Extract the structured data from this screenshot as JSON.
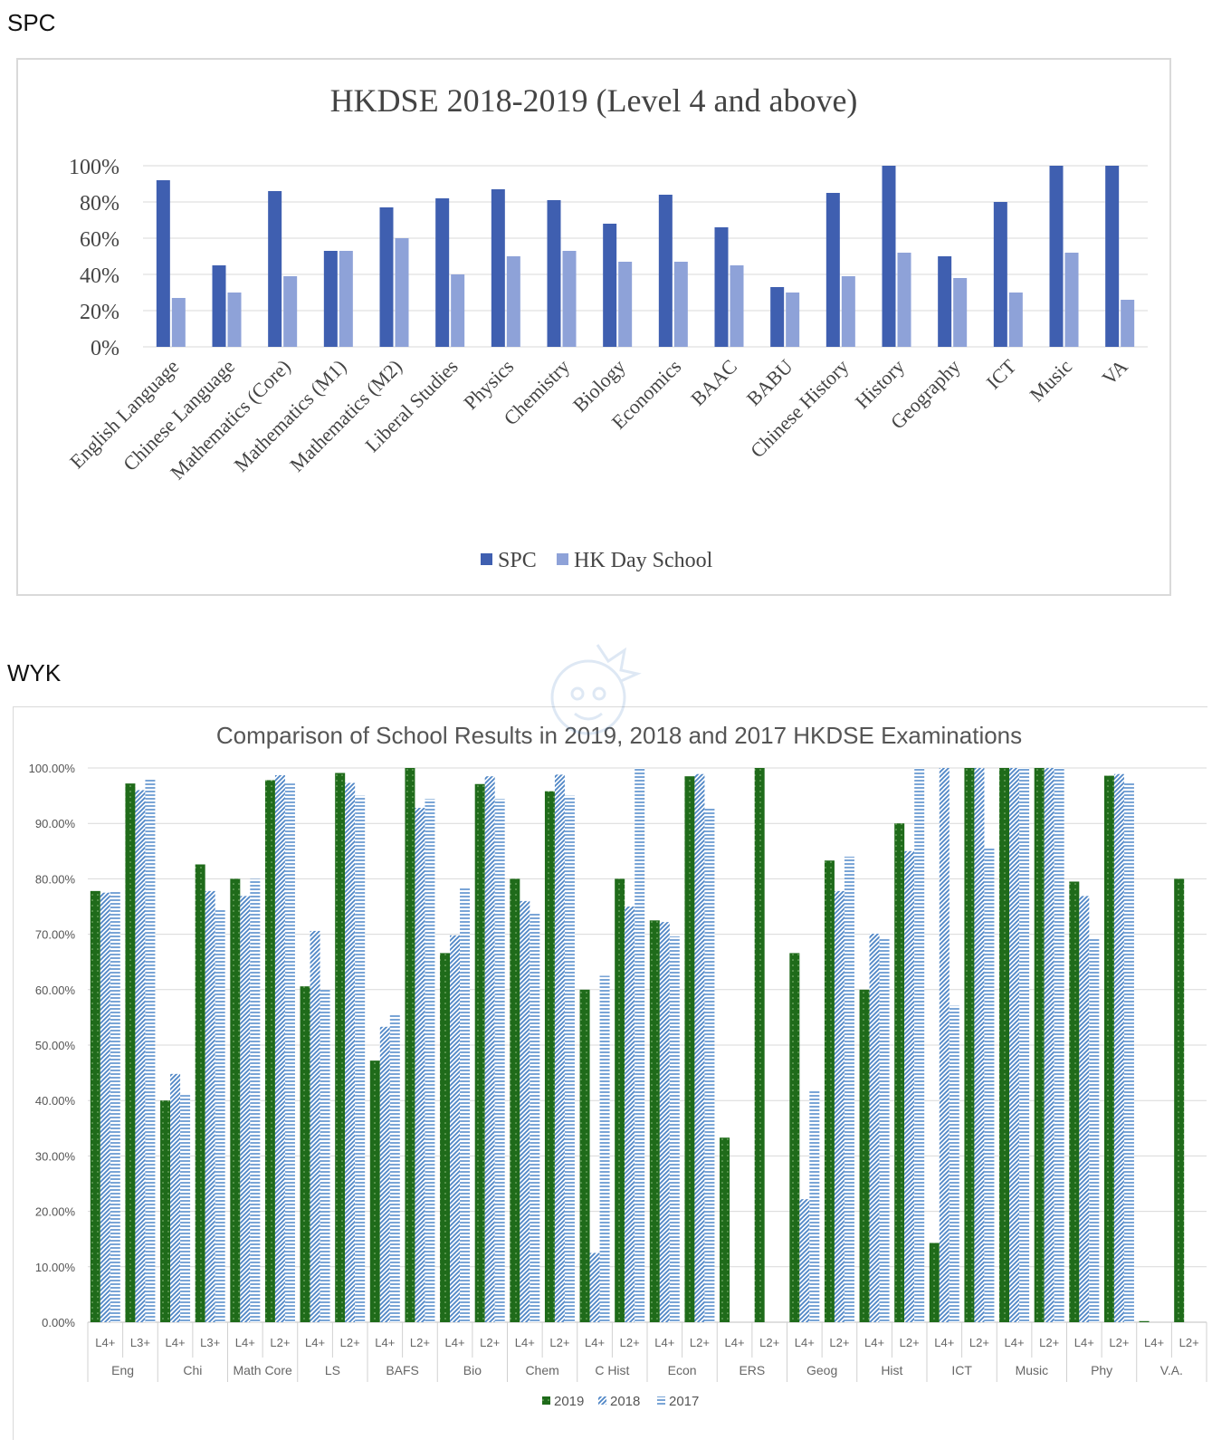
{
  "sections": {
    "top_label": "SPC",
    "bottom_label": "WYK"
  },
  "colors": {
    "spc": "#3f5fb0",
    "hk": "#8ea2d8",
    "y2019": "#1f6b1a",
    "y2018": "#4f86c6",
    "y2017": "#6b9bd2",
    "grid": "#d9d9d9"
  },
  "chart_data": [
    {
      "type": "bar",
      "title": "HKDSE 2018-2019 (Level 4 and above)",
      "categories": [
        "English Language",
        "Chinese Language",
        "Mathematics (Core)",
        "Mathematics (M1)",
        "Mathematics (M2)",
        "Liberal Studies",
        "Physics",
        "Chemistry",
        "Biology",
        "Economics",
        "BAAC",
        "BABU",
        "Chinese History",
        "History",
        "Geography",
        "ICT",
        "Music",
        "VA"
      ],
      "series": [
        {
          "name": "SPC",
          "values": [
            92,
            45,
            86,
            53,
            77,
            82,
            87,
            81,
            68,
            84,
            66,
            33,
            85,
            100,
            50,
            80,
            100,
            100
          ]
        },
        {
          "name": "HK Day School",
          "values": [
            27,
            30,
            39,
            53,
            60,
            40,
            50,
            53,
            47,
            47,
            45,
            30,
            39,
            52,
            38,
            30,
            52,
            26
          ]
        }
      ],
      "y_ticks": [
        "0%",
        "20%",
        "40%",
        "60%",
        "80%",
        "100%"
      ],
      "ylim": [
        0,
        100
      ],
      "legend_position": "bottom",
      "grid": true
    },
    {
      "type": "bar",
      "title": "Comparison of School Results in 2019, 2018 and 2017 HKDSE Examinations",
      "groups": [
        "Eng",
        "Chi",
        "Math Core",
        "LS",
        "BAFS",
        "Bio",
        "Chem",
        "C Hist",
        "Econ",
        "ERS",
        "Geog",
        "Hist",
        "ICT",
        "Music",
        "Phy",
        "V.A."
      ],
      "categories": [
        "L4+",
        "L3+",
        "L4+",
        "L3+",
        "L4+",
        "L2+",
        "L4+",
        "L2+",
        "L4+",
        "L2+",
        "L4+",
        "L2+",
        "L4+",
        "L2+",
        "L4+",
        "L2+",
        "L4+",
        "L2+",
        "L4+",
        "L2+",
        "L4+",
        "L2+",
        "L4+",
        "L2+",
        "L4+",
        "L2+",
        "L4+",
        "L2+",
        "L4+",
        "L2+",
        "L4+",
        "L2+"
      ],
      "series": [
        {
          "name": "2019",
          "values": [
            77.8,
            97.2,
            40,
            82.6,
            80,
            97.8,
            60.6,
            99.1,
            47.2,
            100,
            66.6,
            97.1,
            80,
            95.8,
            60,
            80,
            72.5,
            98.5,
            33.3,
            100,
            66.6,
            83.3,
            60,
            90,
            14.3,
            100,
            100,
            100,
            79.5,
            98.6,
            0.2,
            80
          ]
        },
        {
          "name": "2018",
          "values": [
            77.5,
            96,
            44.8,
            77.8,
            76.9,
            98.7,
            70.6,
            97.3,
            53.3,
            92.8,
            69.8,
            98.5,
            76,
            98.8,
            12.5,
            75,
            72.2,
            98.9,
            0,
            0,
            22.2,
            77.8,
            70.1,
            85,
            100,
            100,
            100,
            100,
            76.9,
            98.9,
            0,
            0
          ]
        },
        {
          "name": "2017",
          "values": [
            77.8,
            98,
            41,
            74.5,
            80,
            97.2,
            60,
            95,
            55.6,
            94.4,
            78.5,
            94.4,
            73.9,
            95,
            62.5,
            100,
            69.6,
            92.9,
            0,
            0,
            41.9,
            84,
            69.2,
            100,
            57.1,
            85.7,
            100,
            100,
            69.2,
            97.4,
            0,
            0
          ]
        }
      ],
      "y_ticks": [
        "0.00%",
        "10.00%",
        "20.00%",
        "30.00%",
        "40.00%",
        "50.00%",
        "60.00%",
        "70.00%",
        "80.00%",
        "90.00%",
        "100.00%"
      ],
      "ylim": [
        0,
        100
      ],
      "legend_position": "bottom",
      "grid": true
    }
  ]
}
